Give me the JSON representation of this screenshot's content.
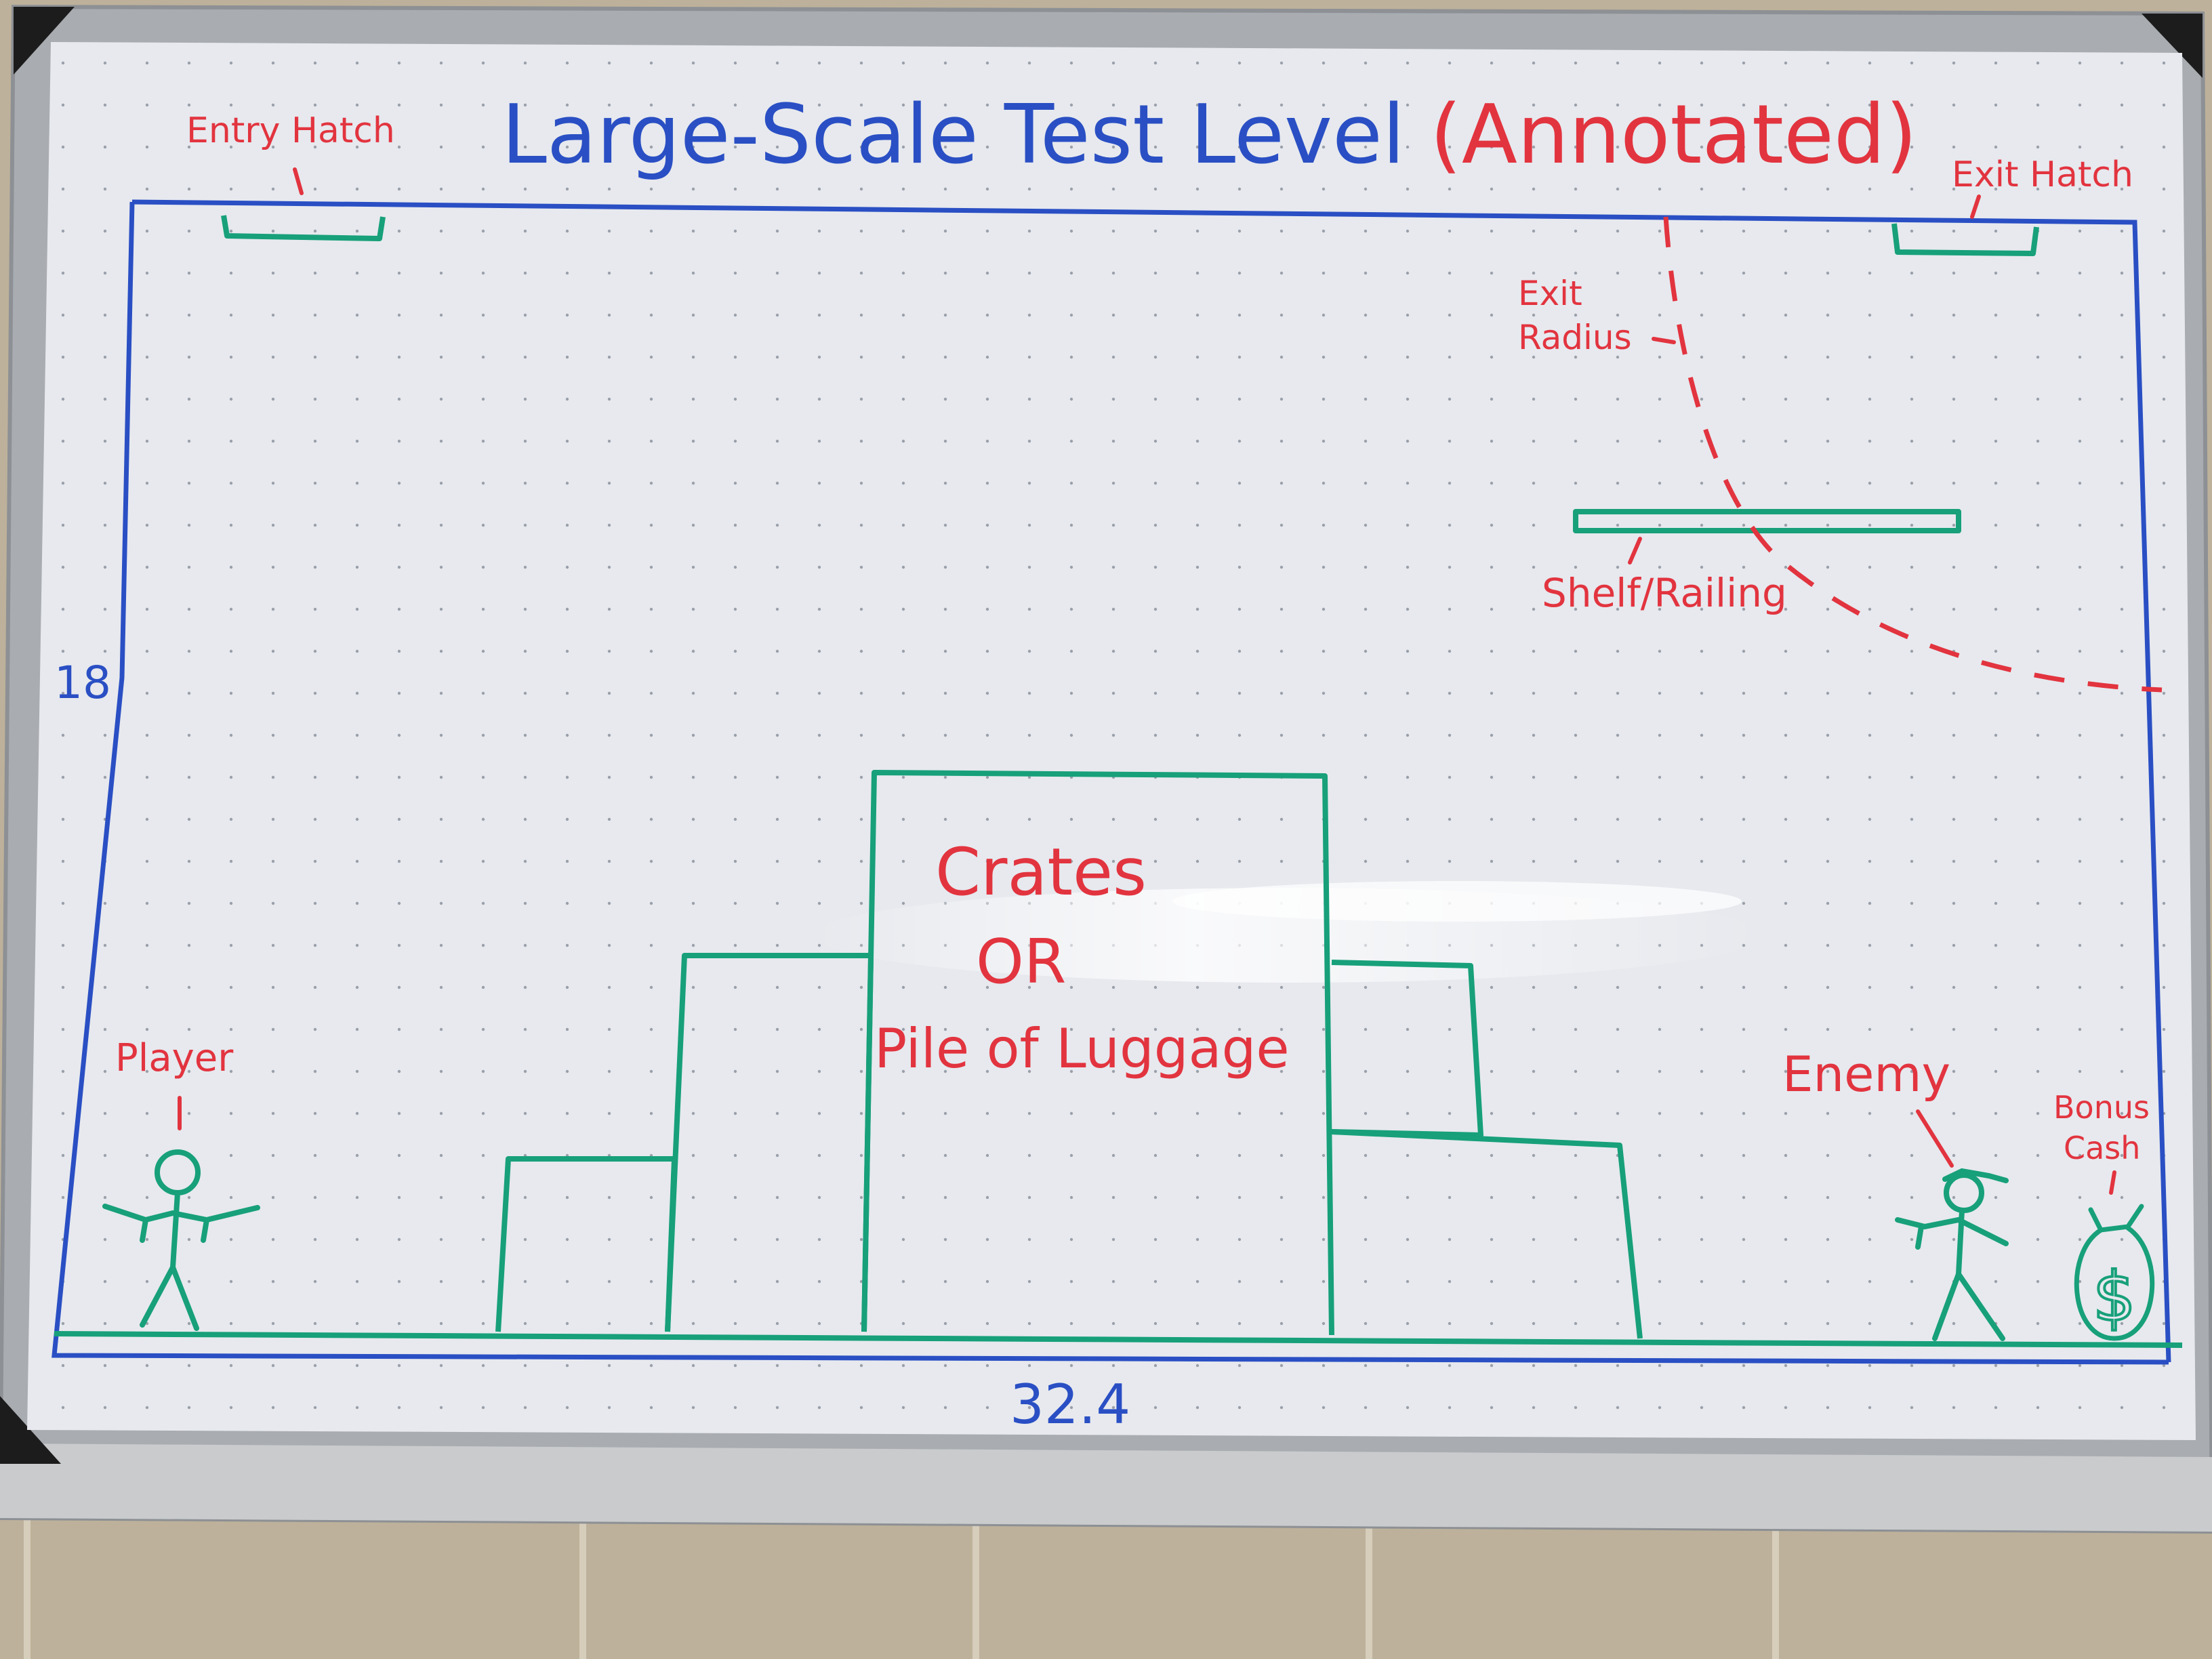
{
  "title": {
    "blue": "Large-Scale Test Level",
    "red": "(Annotated)"
  },
  "dimensions": {
    "height": "18",
    "width": "32.4"
  },
  "labels": {
    "entry_hatch": "Entry Hatch",
    "exit_hatch": "Exit Hatch",
    "exit_radius_line1": "Exit",
    "exit_radius_line2": "Radius",
    "shelf": "Shelf/Railing",
    "crates_line1": "Crates",
    "crates_line2": "OR",
    "crates_line3": "Pile of Luggage",
    "player": "Player",
    "enemy": "Enemy",
    "bonus_line1": "Bonus",
    "bonus_line2": "Cash"
  },
  "colors": {
    "level_outline": "#2a4fc4",
    "geometry": "#17a07a",
    "annotation": "#e2343f",
    "board": "#e7e9ee",
    "frame": "#a9acb0"
  },
  "icons": {
    "player": "stick-figure-icon",
    "enemy": "stick-figure-with-hat-icon",
    "bonus": "money-bag-icon"
  }
}
